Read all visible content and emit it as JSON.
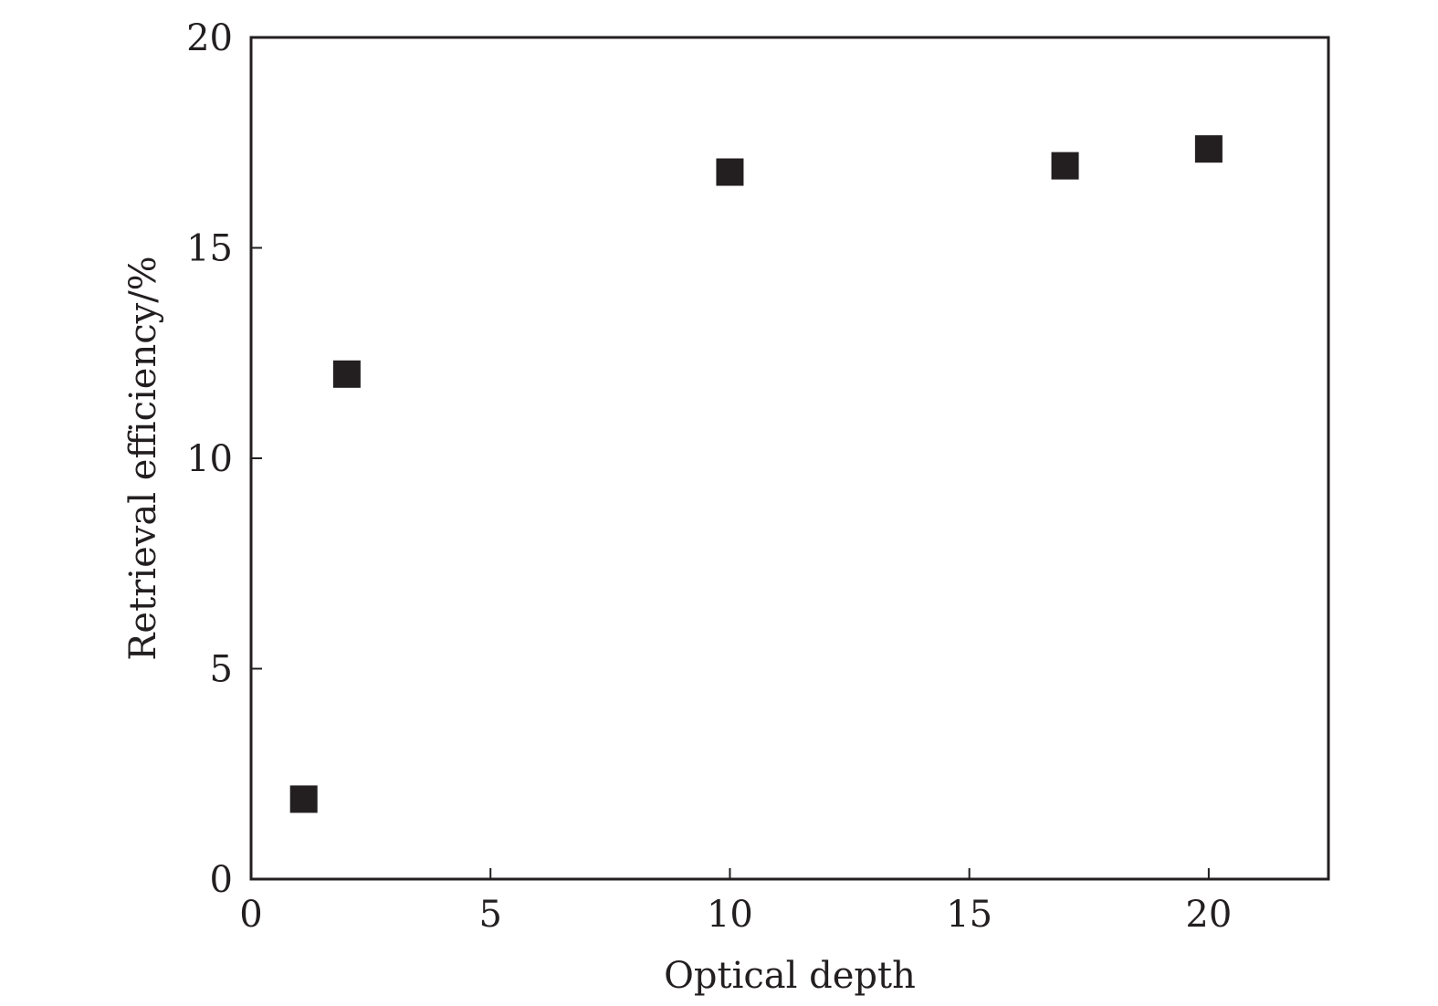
{
  "chart_data": {
    "type": "scatter",
    "title": "",
    "xlabel": "Optical depth",
    "ylabel": "Retrieval efficiency/%",
    "xlim": [
      0,
      22.5
    ],
    "ylim": [
      0,
      20
    ],
    "xticks": [
      0,
      5,
      10,
      15,
      20
    ],
    "yticks": [
      0,
      5,
      10,
      15,
      20
    ],
    "grid": false,
    "marker": "square",
    "marker_color": "#231f20",
    "series": [
      {
        "x": [
          1.1,
          2.0,
          10.0,
          17.0,
          20.0
        ],
        "y": [
          1.9,
          12.0,
          16.8,
          16.95,
          17.35
        ]
      }
    ]
  }
}
